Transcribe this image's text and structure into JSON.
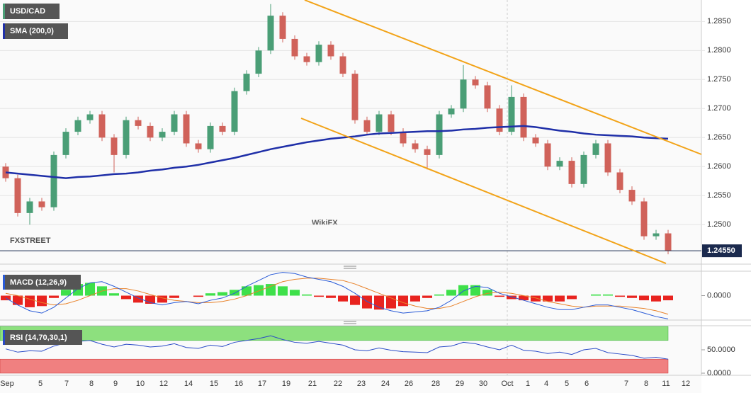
{
  "chart_data": [
    {
      "type": "candlestick",
      "title": "USD/CAD",
      "logo": "FXSTREET",
      "watermark": "WikiFX",
      "up_color": "#4a9e76",
      "down_color": "#d0625a",
      "open": [
        1.26,
        1.258,
        1.252,
        1.254,
        1.253,
        1.262,
        1.266,
        1.268,
        1.269,
        1.265,
        1.262,
        1.268,
        1.267,
        1.265,
        1.266,
        1.269,
        1.264,
        1.263,
        1.267,
        1.266,
        1.273,
        1.276,
        1.28,
        1.286,
        1.282,
        1.279,
        1.278,
        1.281,
        1.279,
        1.276,
        1.268,
        1.266,
        1.269,
        1.266,
        1.264,
        1.263,
        1.262,
        1.269,
        1.27,
        1.275,
        1.274,
        1.27,
        1.266,
        1.272,
        1.265,
        1.264,
        1.26,
        1.261,
        1.257,
        1.262,
        1.264,
        1.259,
        1.256,
        1.254,
        1.248,
        1.2485
      ],
      "high": [
        1.2606,
        1.2586,
        1.2546,
        1.2546,
        1.2626,
        1.2666,
        1.2686,
        1.2696,
        1.2696,
        1.2656,
        1.2686,
        1.2686,
        1.2676,
        1.2666,
        1.2696,
        1.2696,
        1.2646,
        1.2676,
        1.2676,
        1.2736,
        1.2766,
        1.2806,
        1.288,
        1.2866,
        1.2826,
        1.2796,
        1.2816,
        1.2816,
        1.2796,
        1.2766,
        1.2686,
        1.2696,
        1.2696,
        1.2666,
        1.2646,
        1.2636,
        1.2696,
        1.2706,
        1.2775,
        1.2756,
        1.2746,
        1.2706,
        1.274,
        1.2726,
        1.2656,
        1.2646,
        1.2616,
        1.2616,
        1.2626,
        1.2646,
        1.2646,
        1.2596,
        1.2566,
        1.2546,
        1.2491,
        1.2491
      ],
      "low": [
        1.2574,
        1.2514,
        1.25,
        1.2524,
        1.2524,
        1.2614,
        1.2654,
        1.2674,
        1.2644,
        1.259,
        1.2614,
        1.2664,
        1.2644,
        1.2644,
        1.2654,
        1.2634,
        1.2624,
        1.2624,
        1.2654,
        1.2654,
        1.2724,
        1.2754,
        1.2794,
        1.2814,
        1.2784,
        1.2774,
        1.2774,
        1.2784,
        1.2754,
        1.2674,
        1.2654,
        1.2654,
        1.2654,
        1.2634,
        1.2624,
        1.2595,
        1.2614,
        1.2684,
        1.2694,
        1.2734,
        1.2694,
        1.2654,
        1.2654,
        1.2644,
        1.2634,
        1.2594,
        1.2594,
        1.2564,
        1.2564,
        1.2614,
        1.2584,
        1.2554,
        1.2534,
        1.2474,
        1.2474,
        1.2449
      ],
      "close": [
        1.258,
        1.252,
        1.254,
        1.253,
        1.262,
        1.266,
        1.268,
        1.269,
        1.265,
        1.262,
        1.268,
        1.267,
        1.265,
        1.266,
        1.269,
        1.264,
        1.263,
        1.267,
        1.266,
        1.273,
        1.276,
        1.28,
        1.286,
        1.282,
        1.279,
        1.278,
        1.281,
        1.279,
        1.276,
        1.268,
        1.266,
        1.269,
        1.266,
        1.264,
        1.263,
        1.262,
        1.269,
        1.27,
        1.275,
        1.274,
        1.27,
        1.266,
        1.272,
        1.265,
        1.264,
        1.26,
        1.261,
        1.257,
        1.262,
        1.264,
        1.259,
        1.256,
        1.254,
        1.248,
        1.2485,
        1.2455
      ],
      "sma": {
        "name": "SMA (200,0)",
        "color": "#1f2fa8",
        "values": [
          1.259,
          1.2588,
          1.2586,
          1.2584,
          1.2582,
          1.258,
          1.2582,
          1.2583,
          1.2585,
          1.2587,
          1.2588,
          1.259,
          1.2593,
          1.2595,
          1.2598,
          1.26,
          1.2603,
          1.2607,
          1.2611,
          1.2615,
          1.262,
          1.2625,
          1.263,
          1.2634,
          1.2638,
          1.2642,
          1.2645,
          1.2648,
          1.265,
          1.2652,
          1.2655,
          1.2657,
          1.2658,
          1.2659,
          1.266,
          1.2661,
          1.2661,
          1.2662,
          1.2664,
          1.2665,
          1.2667,
          1.2668,
          1.2669,
          1.267,
          1.2668,
          1.2665,
          1.2662,
          1.266,
          1.2657,
          1.2655,
          1.2654,
          1.2653,
          1.2652,
          1.265,
          1.2649,
          1.2648
        ]
      },
      "last_price": {
        "value": 1.2455,
        "label": "1.24550"
      },
      "last_price_color": "#1b2a4e",
      "ylim": [
        1.2432,
        1.2887
      ],
      "yticks": [
        {
          "value": 1.285,
          "label": "1.2850"
        },
        {
          "value": 1.28,
          "label": "1.2800"
        },
        {
          "value": 1.275,
          "label": "1.2750"
        },
        {
          "value": 1.27,
          "label": "1.2700"
        },
        {
          "value": 1.265,
          "label": "1.2650"
        },
        {
          "value": 1.26,
          "label": "1.2600"
        },
        {
          "value": 1.255,
          "label": "1.2550"
        },
        {
          "value": 1.25,
          "label": "1.2500"
        }
      ],
      "grid": true
    },
    {
      "type": "macd",
      "title": "MACD (12,26,9)",
      "macd": {
        "color": "#2a5bd7",
        "values": [
          -0.0002,
          -0.0008,
          -0.0013,
          -0.0015,
          -0.001,
          -0.0002,
          0.0006,
          0.0011,
          0.0012,
          0.0008,
          0.0003,
          -0.0002,
          -0.0006,
          -0.0008,
          -0.0006,
          -0.0005,
          -0.0007,
          -0.0004,
          -0.0002,
          0.0002,
          0.0008,
          0.0013,
          0.0018,
          0.002,
          0.0019,
          0.0016,
          0.0014,
          0.0012,
          0.0008,
          0.0002,
          -0.0005,
          -0.001,
          -0.0013,
          -0.0015,
          -0.0014,
          -0.0013,
          -0.001,
          -0.0004,
          0.0004,
          0.0008,
          0.0007,
          0.0002,
          -0.0001,
          -0.0004,
          -0.0007,
          -0.001,
          -0.0012,
          -0.0012,
          -0.001,
          -0.0008,
          -0.0008,
          -0.001,
          -0.0012,
          -0.0015,
          -0.0018,
          -0.002
        ]
      },
      "signal": {
        "color": "#e8822a",
        "values": [
          0.0002,
          0.0,
          -0.0003,
          -0.0006,
          -0.0008,
          -0.0007,
          -0.0004,
          0.0,
          0.0004,
          0.0006,
          0.0006,
          0.0004,
          0.0001,
          -0.0002,
          -0.0004,
          -0.0005,
          -0.0006,
          -0.0006,
          -0.0005,
          -0.0003,
          0.0,
          0.0004,
          0.0008,
          0.0012,
          0.0014,
          0.0015,
          0.0015,
          0.0014,
          0.0013,
          0.001,
          0.0006,
          0.0002,
          -0.0002,
          -0.0006,
          -0.0009,
          -0.0011,
          -0.0011,
          -0.0009,
          -0.0005,
          -0.0001,
          0.0002,
          0.0003,
          0.0002,
          0.0,
          -0.0002,
          -0.0005,
          -0.0007,
          -0.0009,
          -0.001,
          -0.0009,
          -0.0009,
          -0.0009,
          -0.001,
          -0.0011,
          -0.0013,
          -0.0016
        ]
      },
      "histogram": {
        "positive_color": "#3ee04a",
        "negative_color": "#e8231f",
        "values": [
          -0.0004,
          -0.0008,
          -0.001,
          -0.0009,
          -0.0002,
          0.0005,
          0.001,
          0.0011,
          0.0008,
          0.0002,
          -0.0003,
          -0.0006,
          -0.0007,
          -0.0006,
          -0.0002,
          0.0,
          -0.0001,
          0.0002,
          0.0003,
          0.0005,
          0.0008,
          0.0009,
          0.001,
          0.0008,
          0.0005,
          0.0001,
          -0.0001,
          -0.0002,
          -0.0005,
          -0.0008,
          -0.0011,
          -0.0012,
          -0.0011,
          -0.0009,
          -0.0005,
          -0.0002,
          0.0001,
          0.0005,
          0.0009,
          0.0009,
          0.0005,
          -0.0001,
          -0.0003,
          -0.0004,
          -0.0005,
          -0.0005,
          -0.0005,
          -0.0003,
          0.0,
          0.0001,
          0.0001,
          -0.0001,
          -0.0002,
          -0.0004,
          -0.0005,
          -0.0004
        ]
      },
      "ylim": [
        -0.0021,
        0.0021
      ],
      "yticks": [
        {
          "value": 0,
          "label": "0.0000"
        }
      ]
    },
    {
      "type": "rsi",
      "title": "RSI (14,70,30,1)",
      "color": "#2a4bc7",
      "upper_band": 70,
      "lower_band": 30,
      "upper_color": "#8de07e",
      "lower_color": "#f08080",
      "values": [
        52,
        45,
        48,
        47,
        58,
        65,
        68,
        70,
        62,
        56,
        62,
        60,
        56,
        58,
        63,
        55,
        53,
        60,
        57,
        66,
        70,
        74,
        80,
        72,
        66,
        64,
        68,
        64,
        60,
        50,
        48,
        54,
        49,
        46,
        45,
        44,
        56,
        58,
        66,
        63,
        56,
        50,
        60,
        49,
        47,
        42,
        45,
        40,
        50,
        53,
        44,
        41,
        38,
        32,
        34,
        30
      ],
      "ylim": [
        0,
        100
      ],
      "yticks": [
        {
          "value": 50,
          "label": "50.0000"
        },
        {
          "value": 0,
          "label": "0.0000"
        }
      ],
      "x_labels": [
        "Sep",
        "5",
        "7",
        "8",
        "9",
        "10",
        "12",
        "14",
        "15",
        "16",
        "17",
        "19",
        "21",
        "22",
        "23",
        "24",
        "26",
        "28",
        "29",
        "30",
        "Oct",
        "1",
        "4",
        "5",
        "6",
        "7",
        "8",
        "11",
        "12"
      ]
    }
  ]
}
